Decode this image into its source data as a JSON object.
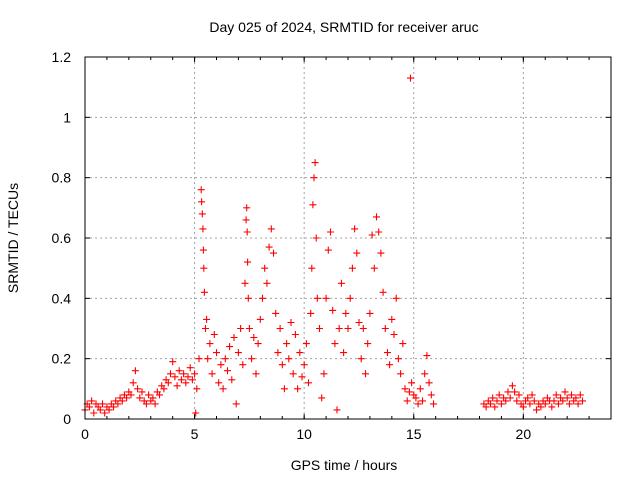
{
  "chart_data": {
    "type": "scatter",
    "title": "Day 025 of 2024, SRMTID for receiver aruc",
    "xlabel": "GPS time / hours",
    "ylabel": "SRMTID / TECUs",
    "xlim": [
      0,
      24
    ],
    "ylim": [
      0,
      1.2
    ],
    "xticks": [
      "0",
      "5",
      "10",
      "15",
      "20"
    ],
    "yticks": [
      "0",
      "0.2",
      "0.4",
      "0.6",
      "0.8",
      "1",
      "1.2"
    ],
    "grid": true,
    "marker": "+",
    "color": "#ff0000",
    "series": [
      {
        "name": "SRMTID",
        "points": [
          [
            0.0,
            0.03
          ],
          [
            0.1,
            0.05
          ],
          [
            0.2,
            0.04
          ],
          [
            0.3,
            0.06
          ],
          [
            0.4,
            0.02
          ],
          [
            0.5,
            0.05
          ],
          [
            0.6,
            0.04
          ],
          [
            0.7,
            0.03
          ],
          [
            0.8,
            0.05
          ],
          [
            0.9,
            0.02
          ],
          [
            1.0,
            0.04
          ],
          [
            1.1,
            0.03
          ],
          [
            1.2,
            0.05
          ],
          [
            1.3,
            0.04
          ],
          [
            1.4,
            0.06
          ],
          [
            1.5,
            0.05
          ],
          [
            1.6,
            0.07
          ],
          [
            1.7,
            0.06
          ],
          [
            1.8,
            0.08
          ],
          [
            1.9,
            0.07
          ],
          [
            2.0,
            0.09
          ],
          [
            2.1,
            0.08
          ],
          [
            2.2,
            0.12
          ],
          [
            2.3,
            0.16
          ],
          [
            2.4,
            0.1
          ],
          [
            2.5,
            0.07
          ],
          [
            2.6,
            0.09
          ],
          [
            2.7,
            0.06
          ],
          [
            2.8,
            0.05
          ],
          [
            2.9,
            0.08
          ],
          [
            3.0,
            0.06
          ],
          [
            3.1,
            0.07
          ],
          [
            3.2,
            0.05
          ],
          [
            3.3,
            0.09
          ],
          [
            3.4,
            0.08
          ],
          [
            3.5,
            0.11
          ],
          [
            3.6,
            0.1
          ],
          [
            3.7,
            0.13
          ],
          [
            3.8,
            0.12
          ],
          [
            3.9,
            0.15
          ],
          [
            4.0,
            0.19
          ],
          [
            4.1,
            0.14
          ],
          [
            4.2,
            0.11
          ],
          [
            4.3,
            0.16
          ],
          [
            4.4,
            0.13
          ],
          [
            4.5,
            0.15
          ],
          [
            4.6,
            0.12
          ],
          [
            4.7,
            0.14
          ],
          [
            4.8,
            0.17
          ],
          [
            4.9,
            0.13
          ],
          [
            5.0,
            0.15
          ],
          [
            5.05,
            0.02
          ],
          [
            5.1,
            0.1
          ],
          [
            5.2,
            0.2
          ],
          [
            5.3,
            0.76
          ],
          [
            5.32,
            0.72
          ],
          [
            5.35,
            0.68
          ],
          [
            5.38,
            0.63
          ],
          [
            5.4,
            0.56
          ],
          [
            5.42,
            0.5
          ],
          [
            5.45,
            0.42
          ],
          [
            5.5,
            0.3
          ],
          [
            5.55,
            0.33
          ],
          [
            5.6,
            0.2
          ],
          [
            5.7,
            0.25
          ],
          [
            5.8,
            0.15
          ],
          [
            5.9,
            0.28
          ],
          [
            6.0,
            0.22
          ],
          [
            6.1,
            0.12
          ],
          [
            6.2,
            0.18
          ],
          [
            6.3,
            0.1
          ],
          [
            6.4,
            0.2
          ],
          [
            6.5,
            0.16
          ],
          [
            6.6,
            0.24
          ],
          [
            6.7,
            0.13
          ],
          [
            6.8,
            0.27
          ],
          [
            6.9,
            0.05
          ],
          [
            7.0,
            0.22
          ],
          [
            7.1,
            0.3
          ],
          [
            7.2,
            0.18
          ],
          [
            7.3,
            0.45
          ],
          [
            7.35,
            0.66
          ],
          [
            7.38,
            0.7
          ],
          [
            7.4,
            0.62
          ],
          [
            7.42,
            0.52
          ],
          [
            7.45,
            0.4
          ],
          [
            7.5,
            0.3
          ],
          [
            7.6,
            0.2
          ],
          [
            7.7,
            0.27
          ],
          [
            7.8,
            0.15
          ],
          [
            7.9,
            0.25
          ],
          [
            8.0,
            0.33
          ],
          [
            8.1,
            0.4
          ],
          [
            8.2,
            0.5
          ],
          [
            8.3,
            0.45
          ],
          [
            8.4,
            0.57
          ],
          [
            8.5,
            0.63
          ],
          [
            8.6,
            0.55
          ],
          [
            8.7,
            0.35
          ],
          [
            8.8,
            0.22
          ],
          [
            8.9,
            0.3
          ],
          [
            9.0,
            0.18
          ],
          [
            9.1,
            0.1
          ],
          [
            9.2,
            0.25
          ],
          [
            9.3,
            0.2
          ],
          [
            9.4,
            0.32
          ],
          [
            9.5,
            0.15
          ],
          [
            9.6,
            0.28
          ],
          [
            9.7,
            0.1
          ],
          [
            9.8,
            0.22
          ],
          [
            9.9,
            0.14
          ],
          [
            10.0,
            0.18
          ],
          [
            10.1,
            0.25
          ],
          [
            10.2,
            0.12
          ],
          [
            10.3,
            0.35
          ],
          [
            10.35,
            0.5
          ],
          [
            10.4,
            0.71
          ],
          [
            10.45,
            0.8
          ],
          [
            10.5,
            0.85
          ],
          [
            10.55,
            0.6
          ],
          [
            10.6,
            0.4
          ],
          [
            10.7,
            0.3
          ],
          [
            10.8,
            0.07
          ],
          [
            10.9,
            0.15
          ],
          [
            11.0,
            0.4
          ],
          [
            11.1,
            0.56
          ],
          [
            11.2,
            0.62
          ],
          [
            11.3,
            0.36
          ],
          [
            11.4,
            0.25
          ],
          [
            11.5,
            0.03
          ],
          [
            11.6,
            0.3
          ],
          [
            11.7,
            0.45
          ],
          [
            11.8,
            0.22
          ],
          [
            11.9,
            0.35
          ],
          [
            12.0,
            0.3
          ],
          [
            12.1,
            0.4
          ],
          [
            12.2,
            0.5
          ],
          [
            12.3,
            0.63
          ],
          [
            12.4,
            0.55
          ],
          [
            12.5,
            0.32
          ],
          [
            12.6,
            0.2
          ],
          [
            12.7,
            0.3
          ],
          [
            12.8,
            0.15
          ],
          [
            12.9,
            0.25
          ],
          [
            13.0,
            0.35
          ],
          [
            13.1,
            0.61
          ],
          [
            13.2,
            0.5
          ],
          [
            13.3,
            0.67
          ],
          [
            13.4,
            0.62
          ],
          [
            13.5,
            0.55
          ],
          [
            13.6,
            0.42
          ],
          [
            13.7,
            0.3
          ],
          [
            13.8,
            0.22
          ],
          [
            13.9,
            0.18
          ],
          [
            14.0,
            0.33
          ],
          [
            14.1,
            0.28
          ],
          [
            14.2,
            0.4
          ],
          [
            14.3,
            0.2
          ],
          [
            14.4,
            0.15
          ],
          [
            14.5,
            0.25
          ],
          [
            14.6,
            0.1
          ],
          [
            14.7,
            0.06
          ],
          [
            14.8,
            0.09
          ],
          [
            14.85,
            1.13
          ],
          [
            14.9,
            0.12
          ],
          [
            15.0,
            0.08
          ],
          [
            15.1,
            0.07
          ],
          [
            15.2,
            0.05
          ],
          [
            15.3,
            0.1
          ],
          [
            15.4,
            0.06
          ],
          [
            15.5,
            0.15
          ],
          [
            15.6,
            0.21
          ],
          [
            15.7,
            0.12
          ],
          [
            15.8,
            0.08
          ],
          [
            15.9,
            0.05
          ],
          [
            18.2,
            0.05
          ],
          [
            18.3,
            0.04
          ],
          [
            18.4,
            0.06
          ],
          [
            18.5,
            0.05
          ],
          [
            18.6,
            0.07
          ],
          [
            18.7,
            0.04
          ],
          [
            18.8,
            0.06
          ],
          [
            18.9,
            0.08
          ],
          [
            19.0,
            0.05
          ],
          [
            19.1,
            0.07
          ],
          [
            19.2,
            0.06
          ],
          [
            19.3,
            0.09
          ],
          [
            19.4,
            0.07
          ],
          [
            19.5,
            0.11
          ],
          [
            19.6,
            0.09
          ],
          [
            19.7,
            0.06
          ],
          [
            19.8,
            0.08
          ],
          [
            19.9,
            0.05
          ],
          [
            20.0,
            0.04
          ],
          [
            20.1,
            0.06
          ],
          [
            20.2,
            0.07
          ],
          [
            20.3,
            0.05
          ],
          [
            20.4,
            0.08
          ],
          [
            20.5,
            0.06
          ],
          [
            20.6,
            0.03
          ],
          [
            20.7,
            0.05
          ],
          [
            20.8,
            0.04
          ],
          [
            20.9,
            0.06
          ],
          [
            21.0,
            0.05
          ],
          [
            21.1,
            0.07
          ],
          [
            21.2,
            0.06
          ],
          [
            21.3,
            0.04
          ],
          [
            21.4,
            0.06
          ],
          [
            21.5,
            0.08
          ],
          [
            21.6,
            0.05
          ],
          [
            21.7,
            0.07
          ],
          [
            21.8,
            0.06
          ],
          [
            21.9,
            0.09
          ],
          [
            22.0,
            0.07
          ],
          [
            22.1,
            0.05
          ],
          [
            22.2,
            0.08
          ],
          [
            22.3,
            0.06
          ],
          [
            22.4,
            0.07
          ],
          [
            22.5,
            0.05
          ],
          [
            22.6,
            0.08
          ],
          [
            22.7,
            0.06
          ]
        ]
      }
    ]
  }
}
